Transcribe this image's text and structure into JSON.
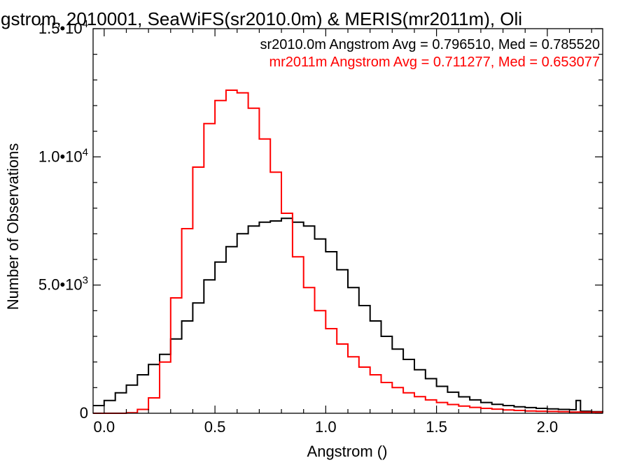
{
  "chart_data": {
    "type": "line",
    "title": "gstrom, 2010001, SeaWiFS(sr2010.0m) & MERIS(mr2011m), Oli",
    "xlabel": "Angstrom ()",
    "ylabel": "Number of Observations",
    "xlim": [
      -0.05,
      2.25
    ],
    "ylim": [
      0,
      15000
    ],
    "x_ticks": [
      {
        "value": 0.0,
        "label": "0.0"
      },
      {
        "value": 0.5,
        "label": "0.5"
      },
      {
        "value": 1.0,
        "label": "1.0"
      },
      {
        "value": 1.5,
        "label": "1.5"
      },
      {
        "value": 2.0,
        "label": "2.0"
      }
    ],
    "y_ticks": [
      {
        "value": 0,
        "mant": "0",
        "exp": ""
      },
      {
        "value": 5000,
        "mant": "5.0•10",
        "exp": "3"
      },
      {
        "value": 10000,
        "mant": "1.0•10",
        "exp": "4"
      },
      {
        "value": 15000,
        "mant": "1.5•10",
        "exp": "4"
      }
    ],
    "grid": false,
    "series": [
      {
        "name": "sr2010.0m",
        "color": "#000000",
        "legend_text": "sr2010.0m Angstrom Avg = 0.796510, Med = 0.785520",
        "x": [
          -0.05,
          0.0,
          0.05,
          0.1,
          0.15,
          0.2,
          0.25,
          0.3,
          0.35,
          0.4,
          0.45,
          0.5,
          0.55,
          0.6,
          0.65,
          0.7,
          0.75,
          0.8,
          0.85,
          0.9,
          0.95,
          1.0,
          1.05,
          1.1,
          1.15,
          1.2,
          1.25,
          1.3,
          1.35,
          1.4,
          1.45,
          1.5,
          1.55,
          1.6,
          1.65,
          1.7,
          1.75,
          1.8,
          1.85,
          1.9,
          1.95,
          2.0,
          2.05,
          2.1,
          2.13,
          2.15,
          2.2,
          2.25
        ],
        "y": [
          300,
          500,
          800,
          1100,
          1500,
          1900,
          2300,
          2900,
          3600,
          4300,
          5200,
          5900,
          6500,
          7000,
          7300,
          7450,
          7500,
          7600,
          7450,
          7300,
          6800,
          6300,
          5600,
          4900,
          4200,
          3600,
          3000,
          2500,
          2100,
          1700,
          1350,
          1050,
          820,
          640,
          520,
          420,
          350,
          300,
          250,
          220,
          190,
          170,
          150,
          140,
          500,
          80,
          60,
          50
        ]
      },
      {
        "name": "mr2011m",
        "color": "#ff0000",
        "legend_text": "mr2011m Angstrom Avg = 0.711277, Med = 0.653077",
        "x": [
          -0.05,
          0.0,
          0.05,
          0.1,
          0.15,
          0.2,
          0.25,
          0.3,
          0.35,
          0.4,
          0.45,
          0.5,
          0.55,
          0.6,
          0.65,
          0.7,
          0.75,
          0.8,
          0.85,
          0.9,
          0.95,
          1.0,
          1.05,
          1.1,
          1.15,
          1.2,
          1.25,
          1.3,
          1.35,
          1.4,
          1.45,
          1.5,
          1.55,
          1.6,
          1.65,
          1.7,
          1.75,
          1.8,
          1.85,
          1.9,
          1.95,
          2.0,
          2.05,
          2.1,
          2.15,
          2.2,
          2.25
        ],
        "y": [
          0,
          0,
          0,
          20,
          150,
          600,
          2000,
          4500,
          7200,
          9600,
          11300,
          12200,
          12600,
          12500,
          11900,
          10700,
          9400,
          7800,
          6100,
          4900,
          4000,
          3300,
          2700,
          2200,
          1800,
          1500,
          1200,
          1000,
          800,
          650,
          520,
          420,
          340,
          280,
          230,
          190,
          160,
          130,
          110,
          90,
          80,
          70,
          60,
          50,
          45,
          40,
          35
        ]
      }
    ]
  }
}
